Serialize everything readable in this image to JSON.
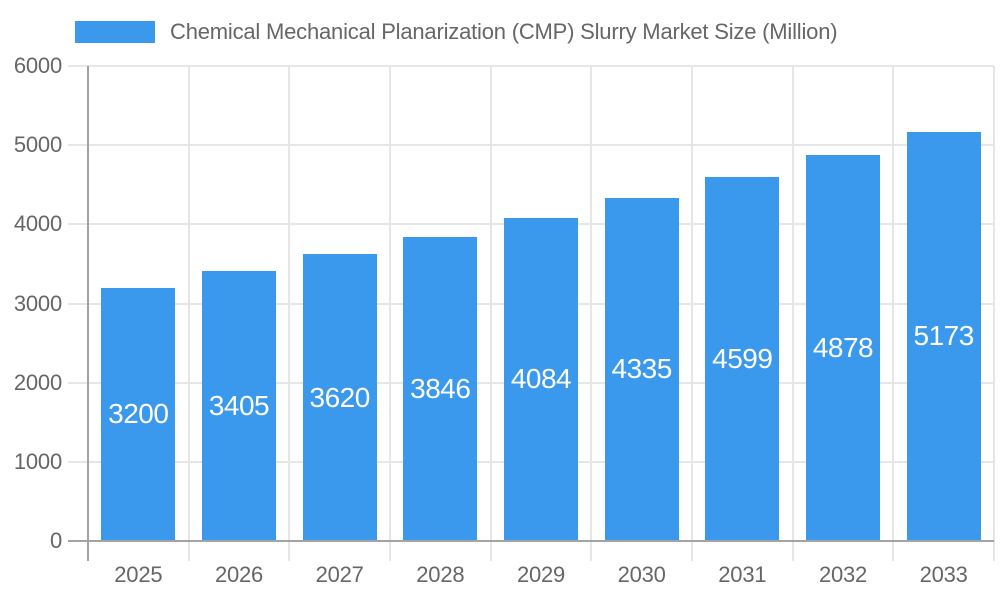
{
  "colors": {
    "bar": "#3A99EC",
    "grid": "#e6e6e6",
    "axis": "#a3a3a3",
    "tick_text": "#666666",
    "value_label_text": "#ffffff",
    "background": "#ffffff"
  },
  "legend": {
    "position": "top"
  },
  "chart_data": {
    "type": "bar",
    "title": "Chemical Mechanical Planarization (CMP) Slurry Market Size (Million)",
    "categories": [
      "2025",
      "2026",
      "2027",
      "2028",
      "2029",
      "2030",
      "2031",
      "2032",
      "2033"
    ],
    "values": [
      3200,
      3405,
      3620,
      3846,
      4084,
      4335,
      4599,
      4878,
      5173
    ],
    "value_labels_shown": true,
    "value_label_position": "inside-center",
    "xlabel": "",
    "ylabel": "",
    "ylim": [
      0,
      6000
    ],
    "yticks": [
      0,
      1000,
      2000,
      3000,
      4000,
      5000,
      6000
    ],
    "grid": "horizontal-and-vertical",
    "legend_position": "top"
  }
}
